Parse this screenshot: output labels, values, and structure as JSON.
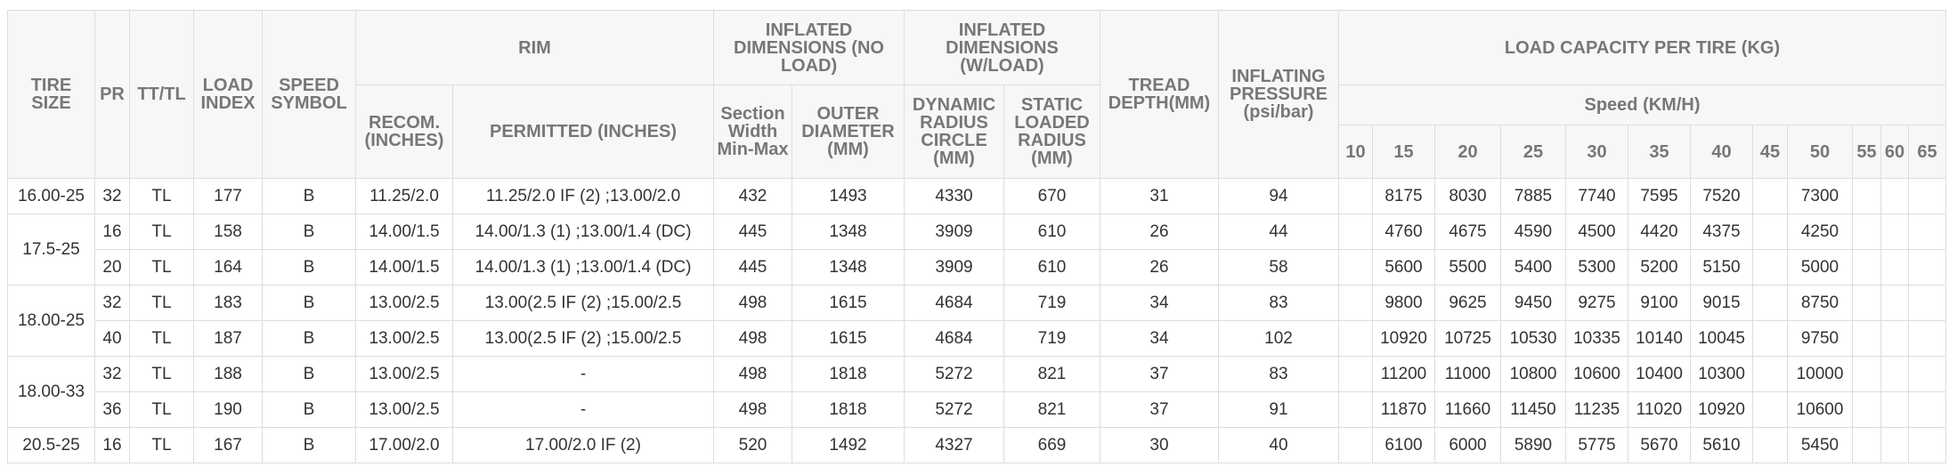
{
  "header": {
    "row1": [
      "TIRE SIZE",
      "PR",
      "TT/TL",
      "LOAD INDEX",
      "SPEED SYMBOL",
      "RIM",
      "INFLATED DIMENSIONS (NO LOAD)",
      "INFLATED DIMENSIONS (W/LOAD)",
      "TREAD DEPTH(MM)",
      "INFLATING PRESSURE (psi/bar)",
      "LOAD CAPACITY PER TIRE (KG)"
    ],
    "row2": [
      "RECOM. (INCHES)",
      "PERMITTED (INCHES)",
      "Section Width Min-Max",
      "OUTER DIAMETER (MM)",
      "DYNAMIC RADIUS CIRCLE (MM)",
      "STATIC LOADED RADIUS (MM)",
      "Speed (KM/H)"
    ],
    "row3": [
      10,
      15,
      20,
      25,
      30,
      35,
      40,
      45,
      50,
      55,
      60,
      65
    ]
  },
  "groups": [
    {
      "size": "16.00-25",
      "rows": [
        [
          32,
          "TL",
          177,
          "B",
          "11.25/2.0",
          "11.25/2.0 IF (2) ;13.00/2.0",
          432,
          1493,
          4330,
          670,
          31,
          94,
          null,
          8175,
          8030,
          7885,
          7740,
          7595,
          7520,
          null,
          7300,
          null,
          null,
          null
        ]
      ]
    },
    {
      "size": "17.5-25",
      "rows": [
        [
          16,
          "TL",
          158,
          "B",
          "14.00/1.5",
          "14.00/1.3 (1) ;13.00/1.4 (DC)",
          445,
          1348,
          3909,
          610,
          26,
          44,
          null,
          4760,
          4675,
          4590,
          4500,
          4420,
          4375,
          null,
          4250,
          null,
          null,
          null
        ],
        [
          20,
          "TL",
          164,
          "B",
          "14.00/1.5",
          "14.00/1.3 (1) ;13.00/1.4 (DC)",
          445,
          1348,
          3909,
          610,
          26,
          58,
          null,
          5600,
          5500,
          5400,
          5300,
          5200,
          5150,
          null,
          5000,
          null,
          null,
          null
        ]
      ]
    },
    {
      "size": "18.00-25",
      "rows": [
        [
          32,
          "TL",
          183,
          "B",
          "13.00/2.5",
          "13.00(2.5 IF (2) ;15.00/2.5",
          498,
          1615,
          4684,
          719,
          34,
          83,
          null,
          9800,
          9625,
          9450,
          9275,
          9100,
          9015,
          null,
          8750,
          null,
          null,
          null
        ],
        [
          40,
          "TL",
          187,
          "B",
          "13.00/2.5",
          "13.00(2.5 IF (2) ;15.00/2.5",
          498,
          1615,
          4684,
          719,
          34,
          102,
          null,
          10920,
          10725,
          10530,
          10335,
          10140,
          10045,
          null,
          9750,
          null,
          null,
          null
        ]
      ]
    },
    {
      "size": "18.00-33",
      "rows": [
        [
          32,
          "TL",
          188,
          "B",
          "13.00/2.5",
          "-",
          498,
          1818,
          5272,
          821,
          37,
          83,
          null,
          11200,
          11000,
          10800,
          10600,
          10400,
          10300,
          null,
          10000,
          null,
          null,
          null
        ],
        [
          36,
          "TL",
          190,
          "B",
          "13.00/2.5",
          "-",
          498,
          1818,
          5272,
          821,
          37,
          91,
          null,
          11870,
          11660,
          11450,
          11235,
          11020,
          10920,
          null,
          10600,
          null,
          null,
          null
        ]
      ]
    },
    {
      "size": "20.5-25",
      "rows": [
        [
          16,
          "TL",
          167,
          "B",
          "17.00/2.0",
          "17.00/2.0 IF (2)",
          520,
          1492,
          4327,
          669,
          30,
          40,
          null,
          6100,
          6000,
          5890,
          5775,
          5670,
          5610,
          null,
          5450,
          null,
          null,
          null
        ]
      ]
    }
  ]
}
